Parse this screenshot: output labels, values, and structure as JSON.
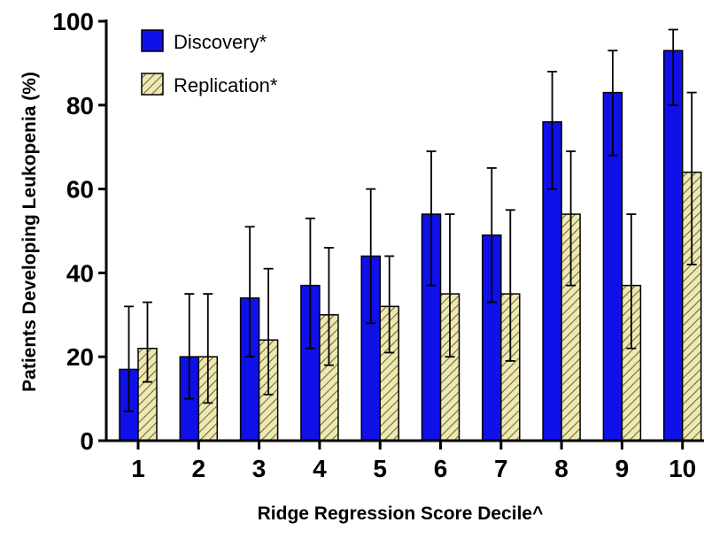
{
  "chart_data": {
    "type": "bar",
    "title": "",
    "xlabel": "Ridge Regression Score Decile^",
    "ylabel": "Patients Developing Leukopenia (%)",
    "categories": [
      "1",
      "2",
      "3",
      "4",
      "5",
      "6",
      "7",
      "8",
      "9",
      "10"
    ],
    "ylim": [
      0,
      100
    ],
    "yticks": [
      "0",
      "20",
      "40",
      "60",
      "80",
      "100"
    ],
    "grid": false,
    "legend_position": "top-left",
    "series": [
      {
        "name": "Discovery*",
        "color": "#1010e8",
        "pattern": "solid",
        "values": [
          17,
          20,
          34,
          37,
          44,
          54,
          49,
          76,
          83,
          93
        ],
        "error_upper": [
          32,
          35,
          51,
          53,
          60,
          69,
          65,
          88,
          93,
          98
        ],
        "error_lower": [
          7,
          10,
          20,
          22,
          28,
          37,
          33,
          60,
          68,
          80
        ]
      },
      {
        "name": "Replication*",
        "color": "#efe9b0",
        "pattern": "diagonal-hatch",
        "values": [
          22,
          20,
          24,
          30,
          32,
          35,
          35,
          54,
          37,
          64
        ],
        "error_upper": [
          33,
          35,
          41,
          46,
          44,
          54,
          55,
          69,
          54,
          83
        ],
        "error_lower": [
          14,
          9,
          11,
          18,
          21,
          20,
          19,
          37,
          22,
          42
        ]
      }
    ]
  }
}
